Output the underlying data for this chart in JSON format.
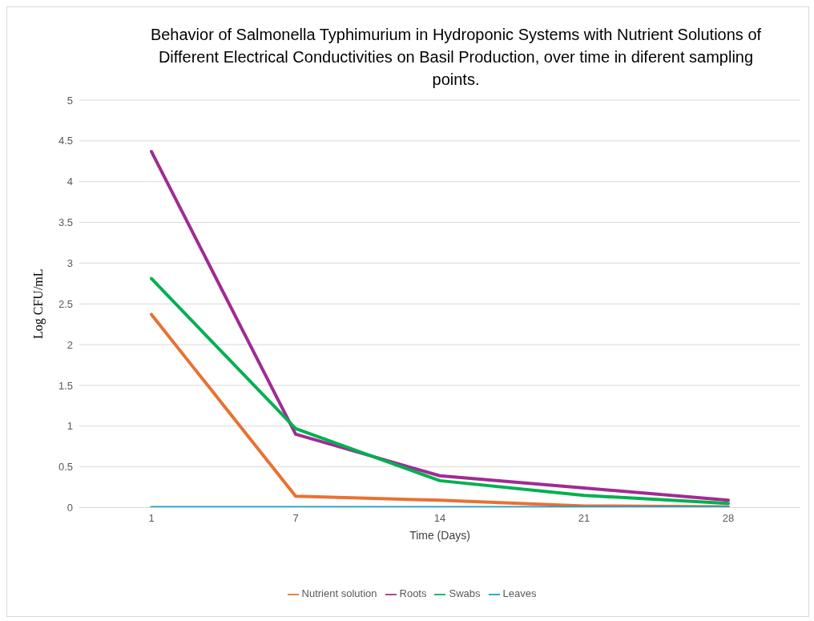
{
  "chart_data": {
    "type": "line",
    "title": "Behavior  of Salmonella Typhimurium in Hydroponic Systems with Nutrient Solutions of Different Electrical Conductivities on Basil Production, over time in diferent sampling points.",
    "xlabel": "Time (Days)",
    "ylabel": "Log CFU/mL",
    "categories": [
      "1",
      "7",
      "14",
      "21",
      "28"
    ],
    "series": [
      {
        "name": "Nutrient solution",
        "color": "#e97132",
        "values": [
          2.37,
          0.14,
          0.09,
          0.02,
          0.01
        ]
      },
      {
        "name": "Roots",
        "color": "#a02b93",
        "values": [
          4.37,
          0.9,
          0.39,
          0.24,
          0.09
        ]
      },
      {
        "name": "Swabs",
        "color": "#00b050",
        "values": [
          2.81,
          0.97,
          0.33,
          0.15,
          0.05
        ]
      },
      {
        "name": "Leaves",
        "color": "#0f9ed5",
        "values": [
          0,
          0,
          0,
          0,
          0
        ]
      }
    ],
    "ylim": [
      0,
      5
    ],
    "yticks": [
      0,
      0.5,
      1,
      1.5,
      2,
      2.5,
      3,
      3.5,
      4,
      4.5,
      5
    ],
    "grid": "y",
    "legend": "bottom",
    "marker": "none",
    "line_style": "solid"
  }
}
